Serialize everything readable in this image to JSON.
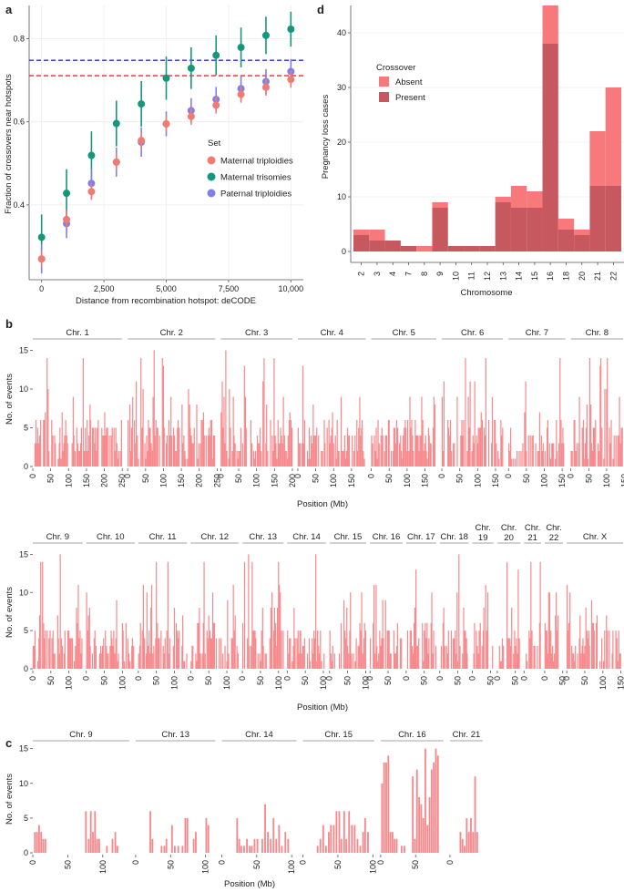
{
  "panels": {
    "a": "a",
    "b": "b",
    "c": "c",
    "d": "d"
  },
  "chart_data": [
    {
      "id": "a",
      "type": "scatter",
      "xlabel": "Distance from recombination hotspot: deCODE",
      "ylabel": "Fraction of crossovers near hotspots",
      "xlim": [
        -500,
        10500
      ],
      "ylim": [
        0.22,
        0.88
      ],
      "xticks": [
        0,
        2500,
        5000,
        7500,
        10000
      ],
      "xtick_labels": [
        "0",
        "2,500",
        "5,000",
        "7,500",
        "10,000"
      ],
      "yticks": [
        0.4,
        0.6,
        0.8
      ],
      "ytick_labels": [
        "0.4",
        "0.6",
        "0.8"
      ],
      "legend_title": "Set",
      "legend_position": "center-right",
      "x": [
        0,
        1000,
        2000,
        3000,
        4000,
        5000,
        6000,
        7000,
        8000,
        9000,
        10000
      ],
      "series": [
        {
          "name": "Maternal triploidies",
          "color": "#f07b72",
          "values": [
            0.27,
            0.365,
            0.432,
            0.503,
            0.555,
            0.595,
            0.613,
            0.64,
            0.666,
            0.683,
            0.702
          ],
          "err": [
            0.02,
            0.02,
            0.02,
            0.02,
            0.02,
            0.02,
            0.02,
            0.02,
            0.02,
            0.02,
            0.02
          ]
        },
        {
          "name": "Maternal trisomies",
          "color": "#16967b",
          "values": [
            0.322,
            0.428,
            0.519,
            0.596,
            0.643,
            0.705,
            0.729,
            0.76,
            0.779,
            0.808,
            0.823
          ],
          "err": [
            0.055,
            0.058,
            0.058,
            0.055,
            0.055,
            0.052,
            0.05,
            0.048,
            0.048,
            0.045,
            0.042
          ]
        },
        {
          "name": "Paternal triploidies",
          "color": "#7f80e8",
          "values": [
            0.27,
            0.355,
            0.452,
            0.503,
            0.551,
            0.595,
            0.627,
            0.654,
            0.68,
            0.697,
            0.721
          ],
          "err": [
            0.035,
            0.035,
            0.035,
            0.035,
            0.035,
            0.03,
            0.03,
            0.03,
            0.03,
            0.03,
            0.03
          ]
        }
      ],
      "hlines": [
        {
          "y": 0.748,
          "color": "#2a2ae0",
          "style": "dashed"
        },
        {
          "y": 0.711,
          "color": "#e02a2a",
          "style": "dashed"
        }
      ]
    },
    {
      "id": "d",
      "type": "bar",
      "stacked": true,
      "xlabel": "Chromosome",
      "ylabel": "Pregnancy loss cases",
      "ylim": [
        -2,
        45
      ],
      "yticks": [
        0,
        10,
        20,
        30,
        40
      ],
      "legend_title": "Crossover",
      "legend_position": "top-left",
      "categories": [
        "2",
        "3",
        "4",
        "7",
        "8",
        "9",
        "10",
        "11",
        "12",
        "13",
        "14",
        "15",
        "16",
        "18",
        "20",
        "21",
        "22"
      ],
      "series": [
        {
          "name": "Present",
          "color": "#c8585f",
          "values": [
            3,
            2,
            2,
            1,
            0,
            8,
            1,
            1,
            1,
            9,
            8,
            8,
            38,
            4,
            3,
            12,
            12
          ]
        },
        {
          "name": "Absent",
          "color": "#f7797c",
          "values": [
            1,
            2,
            0,
            0,
            1,
            1,
            0,
            0,
            0,
            1,
            4,
            3,
            7,
            2,
            1,
            10,
            18
          ]
        }
      ]
    },
    {
      "id": "b",
      "type": "bar",
      "ylabel": "No. of events",
      "xlabel": "Position (Mb)",
      "ylim": [
        0,
        16
      ],
      "yticks": [
        0,
        5,
        10,
        15
      ],
      "bar_color": "#f7898c",
      "rows": [
        {
          "label_mb": "Position (Mb)",
          "facets": [
            {
              "name": "Chr. 1",
              "length_mb": 250,
              "ticks": [
                0,
                50,
                100,
                150,
                200,
                250
              ]
            },
            {
              "name": "Chr. 2",
              "length_mb": 245,
              "ticks": [
                0,
                50,
                100,
                150,
                200,
                250
              ]
            },
            {
              "name": "Chr. 3",
              "length_mb": 200,
              "ticks": [
                0,
                50,
                100,
                150,
                200
              ]
            },
            {
              "name": "Chr. 4",
              "length_mb": 190,
              "ticks": [
                0,
                50,
                100,
                150
              ]
            },
            {
              "name": "Chr. 5",
              "length_mb": 182,
              "ticks": [
                0,
                50,
                100,
                150
              ]
            },
            {
              "name": "Chr. 6",
              "length_mb": 171,
              "ticks": [
                0,
                50,
                100,
                150
              ]
            },
            {
              "name": "Chr. 7",
              "length_mb": 159,
              "ticks": [
                0,
                50,
                100,
                150
              ]
            },
            {
              "name": "Chr. 8",
              "length_mb": 146,
              "ticks": [
                0,
                50,
                100,
                150
              ]
            }
          ]
        },
        {
          "label_mb": "Position (Mb)",
          "facets": [
            {
              "name": "Chr. 9",
              "length_mb": 138,
              "ticks": [
                0,
                50,
                100
              ]
            },
            {
              "name": "Chr. 10",
              "length_mb": 134,
              "ticks": [
                0,
                50,
                100
              ]
            },
            {
              "name": "Chr. 11",
              "length_mb": 135,
              "ticks": [
                0,
                50,
                100
              ]
            },
            {
              "name": "Chr. 12",
              "length_mb": 133,
              "ticks": [
                0,
                50,
                100
              ]
            },
            {
              "name": "Chr. 13",
              "length_mb": 114,
              "ticks": [
                0,
                50,
                100
              ]
            },
            {
              "name": "Chr. 14",
              "length_mb": 107,
              "ticks": [
                0,
                50,
                100
              ]
            },
            {
              "name": "Chr. 15",
              "length_mb": 102,
              "ticks": [
                0,
                50,
                100
              ]
            },
            {
              "name": "Chr. 16",
              "length_mb": 90,
              "ticks": [
                0,
                50
              ]
            },
            {
              "name": "Chr. 17",
              "length_mb": 83,
              "ticks": [
                0,
                50
              ]
            },
            {
              "name": "Chr. 18",
              "length_mb": 80,
              "ticks": [
                0,
                50
              ]
            },
            {
              "name": "Chr.\n19",
              "length_mb": 59,
              "ticks": [
                0,
                50
              ]
            },
            {
              "name": "Chr.\n20",
              "length_mb": 64,
              "ticks": [
                0,
                50
              ]
            },
            {
              "name": "Chr.\n21",
              "length_mb": 47,
              "ticks": [
                0
              ]
            },
            {
              "name": "Chr.\n22",
              "length_mb": 51,
              "ticks": [
                0,
                50
              ]
            },
            {
              "name": "Chr. X",
              "length_mb": 156,
              "ticks": [
                0,
                50,
                100,
                150
              ]
            }
          ]
        }
      ]
    },
    {
      "id": "c",
      "type": "bar",
      "ylabel": "No. of events",
      "xlabel": "Position (Mb)",
      "ylim": [
        0,
        16
      ],
      "yticks": [
        0,
        5,
        10,
        15
      ],
      "bar_color": "#f7898c",
      "facets": [
        {
          "name": "Chr. 9",
          "length_mb": 138,
          "ticks": [
            0,
            50,
            100
          ],
          "bins": [
            [
              3,
              3
            ],
            [
              6,
              3
            ],
            [
              9,
              4
            ],
            [
              12,
              3
            ],
            [
              15,
              2
            ],
            [
              18,
              2
            ],
            [
              76,
              6
            ],
            [
              80,
              2
            ],
            [
              83,
              6
            ],
            [
              86,
              3
            ],
            [
              89,
              6
            ],
            [
              92,
              2
            ],
            [
              95,
              2
            ],
            [
              106,
              1
            ],
            [
              114,
              2
            ],
            [
              118,
              3
            ],
            [
              121,
              1
            ]
          ]
        },
        {
          "name": "Chr. 13",
          "length_mb": 114,
          "ticks": [
            0,
            50,
            100
          ],
          "bins": [
            [
              21,
              6
            ],
            [
              24,
              2
            ],
            [
              37,
              1
            ],
            [
              41,
              1
            ],
            [
              44,
              2
            ],
            [
              52,
              4
            ],
            [
              56,
              1
            ],
            [
              61,
              1
            ],
            [
              67,
              1
            ],
            [
              71,
              5
            ],
            [
              74,
              5
            ],
            [
              83,
              2
            ],
            [
              86,
              3
            ],
            [
              101,
              5
            ],
            [
              104,
              4
            ]
          ]
        },
        {
          "name": "Chr. 14",
          "length_mb": 107,
          "ticks": [
            0,
            50,
            100
          ],
          "bins": [
            [
              22,
              5
            ],
            [
              25,
              2
            ],
            [
              28,
              1
            ],
            [
              32,
              1
            ],
            [
              36,
              2
            ],
            [
              40,
              1
            ],
            [
              43,
              1
            ],
            [
              47,
              2
            ],
            [
              51,
              2
            ],
            [
              58,
              2
            ],
            [
              62,
              7
            ],
            [
              66,
              3
            ],
            [
              70,
              2
            ],
            [
              74,
              5
            ],
            [
              78,
              2
            ],
            [
              82,
              4
            ],
            [
              86,
              1
            ],
            [
              91,
              3
            ],
            [
              95,
              2
            ]
          ]
        },
        {
          "name": "Chr. 15",
          "length_mb": 102,
          "ticks": [
            0,
            50,
            100
          ],
          "bins": [
            [
              21,
              1
            ],
            [
              25,
              2
            ],
            [
              29,
              4
            ],
            [
              33,
              1
            ],
            [
              37,
              3
            ],
            [
              40,
              4
            ],
            [
              44,
              4
            ],
            [
              48,
              6
            ],
            [
              52,
              6
            ],
            [
              55,
              2
            ],
            [
              59,
              6
            ],
            [
              62,
              2
            ],
            [
              66,
              6
            ],
            [
              70,
              4
            ],
            [
              74,
              4
            ],
            [
              78,
              2
            ],
            [
              82,
              1
            ],
            [
              86,
              3
            ],
            [
              89,
              5
            ],
            [
              93,
              3
            ]
          ]
        },
        {
          "name": "Chr. 16",
          "length_mb": 90,
          "ticks": [
            0,
            50
          ],
          "bins": [
            [
              2,
              10
            ],
            [
              5,
              13
            ],
            [
              8,
              13
            ],
            [
              11,
              14
            ],
            [
              14,
              3
            ],
            [
              17,
              3
            ],
            [
              20,
              2
            ],
            [
              23,
              2
            ],
            [
              30,
              1
            ],
            [
              34,
              1
            ],
            [
              46,
              11
            ],
            [
              49,
              2
            ],
            [
              52,
              12
            ],
            [
              55,
              8
            ],
            [
              58,
              7
            ],
            [
              61,
              5
            ],
            [
              64,
              15
            ],
            [
              67,
              4
            ],
            [
              70,
              8
            ],
            [
              73,
              12
            ],
            [
              76,
              13
            ],
            [
              79,
              15
            ],
            [
              82,
              14
            ]
          ]
        },
        {
          "name": "Chr. 21",
          "length_mb": 47,
          "ticks": [
            0
          ],
          "bins": [
            [
              15,
              3
            ],
            [
              18,
              2
            ],
            [
              21,
              1
            ],
            [
              24,
              5
            ],
            [
              27,
              3
            ],
            [
              30,
              5
            ],
            [
              33,
              3
            ],
            [
              36,
              11
            ],
            [
              39,
              3
            ]
          ]
        }
      ]
    }
  ]
}
